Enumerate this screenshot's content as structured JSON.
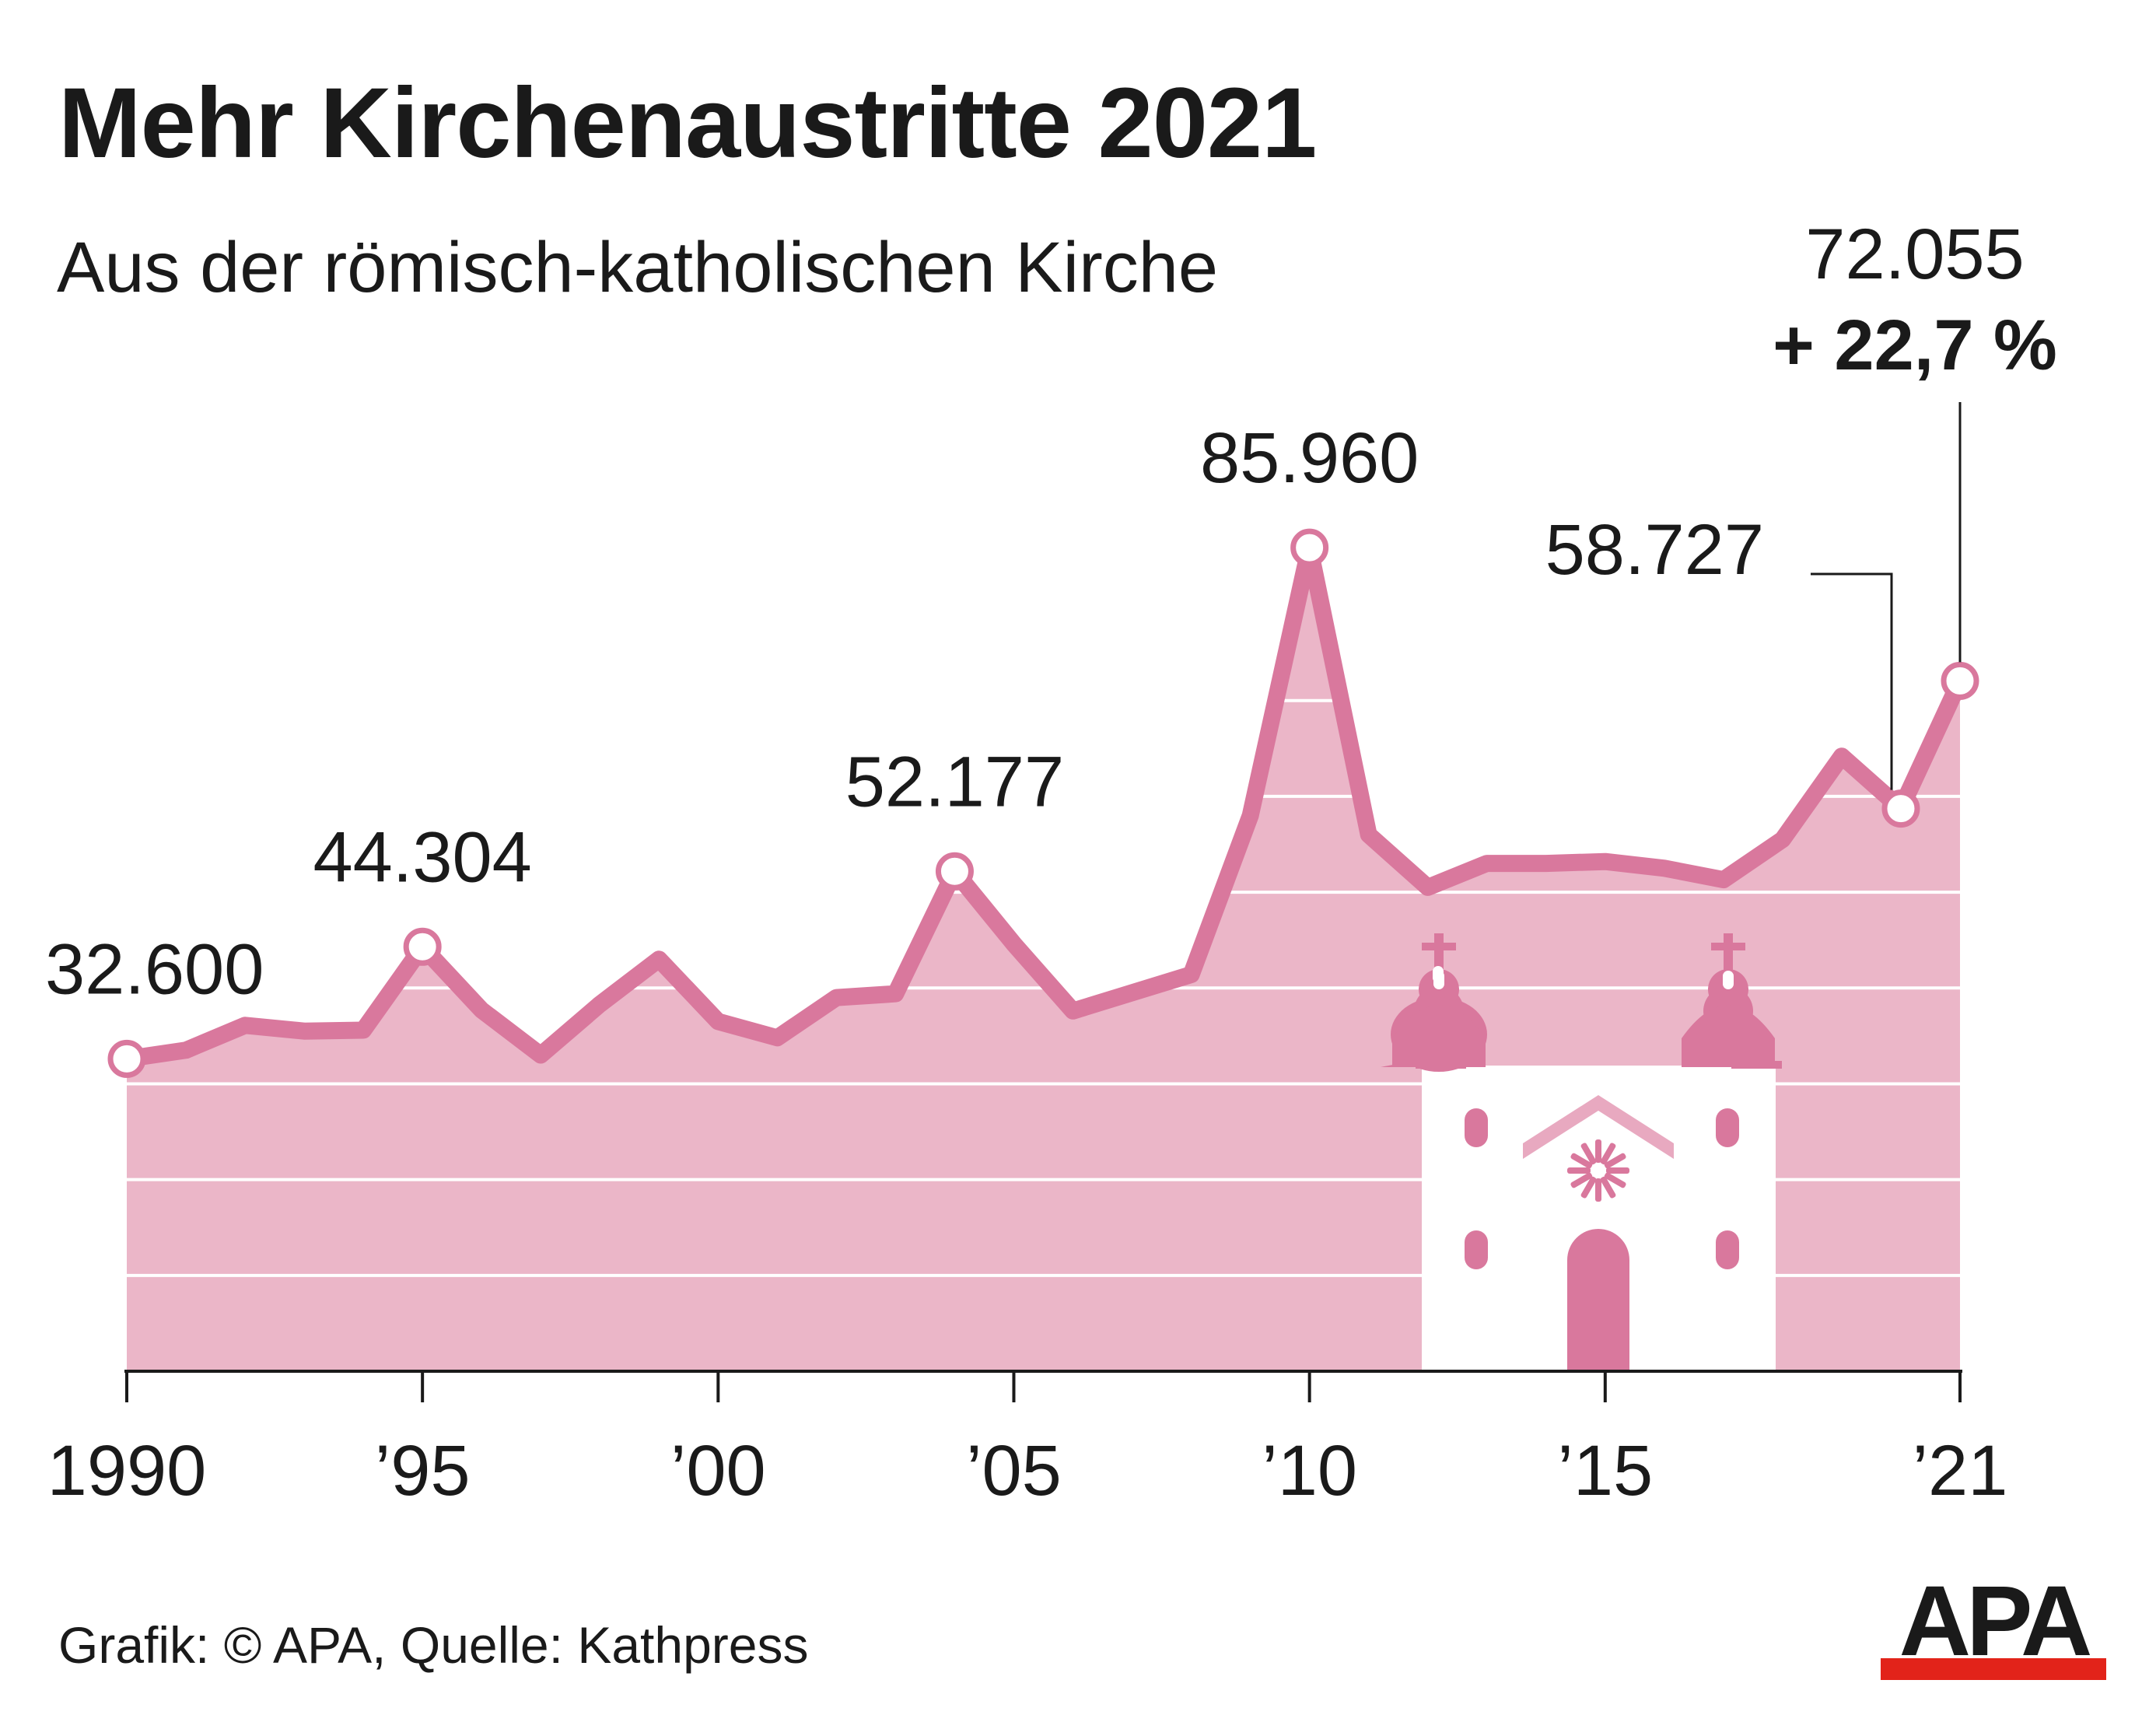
{
  "header": {
    "title": "Mehr Kirchenaustritte 2021",
    "subtitle": "Aus der römisch-katholischen Kirche"
  },
  "footer": {
    "credit": "Grafik: © APA, Quelle: Kathpress",
    "logo_text": "APA"
  },
  "colors": {
    "line": "#d9789d",
    "fill": "#ebb6c8",
    "grid": "#ffffff",
    "text": "#1a1a1a",
    "logo_red": "#e2231a",
    "church": "#d9789d"
  },
  "decoration": {
    "illustration": "church-icon"
  },
  "chart_data": {
    "type": "area",
    "title": "Mehr Kirchenaustritte 2021",
    "subtitle": "Aus der römisch-katholischen Kirche",
    "xlabel": "",
    "ylabel": "",
    "x": [
      1990,
      1991,
      1992,
      1993,
      1994,
      1995,
      1996,
      1997,
      1998,
      1999,
      2000,
      2001,
      2002,
      2003,
      2004,
      2005,
      2006,
      2007,
      2008,
      2009,
      2010,
      2011,
      2012,
      2013,
      2014,
      2015,
      2016,
      2017,
      2018,
      2019,
      2020,
      2021
    ],
    "values": [
      32600,
      33500,
      36100,
      35500,
      35600,
      44304,
      37700,
      33000,
      38300,
      43000,
      36500,
      34800,
      39000,
      39400,
      52177,
      44600,
      37600,
      39500,
      41400,
      58000,
      85960,
      56000,
      50500,
      53000,
      53000,
      53200,
      52500,
      51300,
      55500,
      64200,
      58727,
      72055
    ],
    "ylim": [
      0,
      90000
    ],
    "grid": true,
    "gridlines": [
      10000,
      20000,
      30000,
      40000,
      50000,
      60000,
      70000
    ],
    "xticks": [
      {
        "x": 1990,
        "label": "1990"
      },
      {
        "x": 1995,
        "label": "’95"
      },
      {
        "x": 2000,
        "label": "’00"
      },
      {
        "x": 2005,
        "label": "’05"
      },
      {
        "x": 2010,
        "label": "’10"
      },
      {
        "x": 2015,
        "label": "’15"
      },
      {
        "x": 2021,
        "label": "’21"
      }
    ],
    "annotations": [
      {
        "x": 1990,
        "label": "32.600"
      },
      {
        "x": 1995,
        "label": "44.304"
      },
      {
        "x": 2004,
        "label": "52.177"
      },
      {
        "x": 2010,
        "label": "85.960"
      },
      {
        "x": 2020,
        "label": "58.727"
      },
      {
        "x": 2021,
        "label": "72.055",
        "sublabel": "+ 22,7 %"
      }
    ]
  }
}
